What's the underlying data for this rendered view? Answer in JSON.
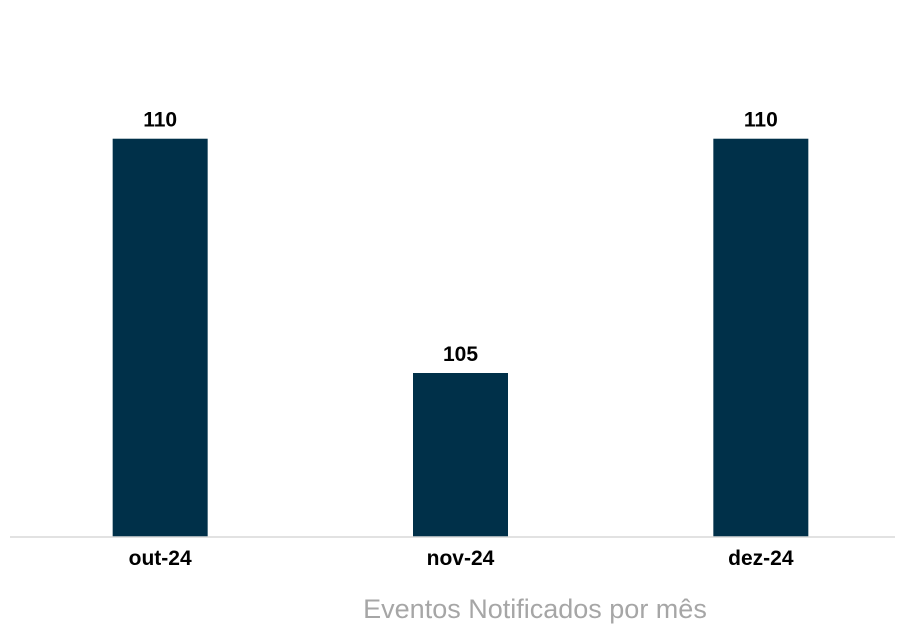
{
  "chart_data": {
    "type": "bar",
    "categories": [
      "out-24",
      "nov-24",
      "dez-24"
    ],
    "values": [
      110,
      105,
      110
    ],
    "data_labels": [
      "110",
      "105",
      "110"
    ],
    "title": "Eventos Notificados por mês",
    "title_position": "bottom",
    "xlabel": "",
    "ylabel": "",
    "ylim": [
      101.5,
      112
    ],
    "grid": false,
    "legend": "none",
    "colors": {
      "bar": "#003049",
      "axis": "#d9d9d9",
      "title": "#a6a6a6",
      "labels": "#000000"
    }
  }
}
